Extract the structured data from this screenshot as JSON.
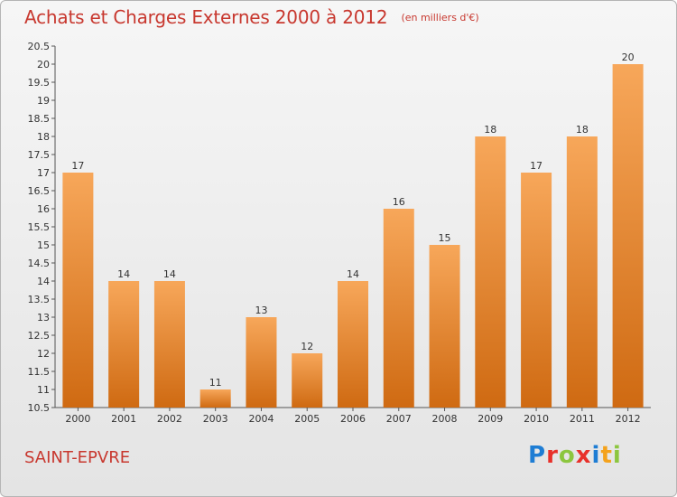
{
  "header": {
    "title": "Achats et Charges Externes 2000 à 2012",
    "units": "(en milliers d'€)"
  },
  "footer": {
    "town": "SAINT-EPVRE",
    "logo_letters": [
      "P",
      "r",
      "o",
      "x",
      "i",
      "t",
      "i"
    ],
    "logo_colors": [
      "#1e7dd4",
      "#e8302a",
      "#8cc63f",
      "#e8302a",
      "#1e7dd4",
      "#f4a21c",
      "#8cc63f"
    ]
  },
  "colors": {
    "bar_top": "#f7a75a",
    "bar_bottom": "#cf6a12",
    "axis_text": "#333333"
  },
  "chart_data": {
    "type": "bar",
    "categories": [
      "2000",
      "2001",
      "2002",
      "2003",
      "2004",
      "2005",
      "2006",
      "2007",
      "2008",
      "2009",
      "2010",
      "2011",
      "2012"
    ],
    "values": [
      17,
      14,
      14,
      11,
      13,
      12,
      14,
      16,
      15,
      18,
      17,
      18,
      20
    ],
    "data_labels": [
      "17",
      "14",
      "14",
      "11",
      "13",
      "12",
      "14",
      "16",
      "15",
      "18",
      "17",
      "18",
      "20"
    ],
    "yticks": [
      10.5,
      11,
      11.5,
      12,
      12.5,
      13,
      13.5,
      14,
      14.5,
      15,
      15.5,
      16,
      16.5,
      17,
      17.5,
      18,
      18.5,
      19,
      19.5,
      20,
      20.5
    ],
    "ytick_labels": [
      "10.5",
      "11",
      "11.5",
      "12",
      "12.5",
      "13",
      "13.5",
      "14",
      "14.5",
      "15",
      "15.5",
      "16",
      "16.5",
      "17",
      "17.5",
      "18",
      "18.5",
      "19",
      "19.5",
      "20",
      "20.5"
    ],
    "ylim": [
      10.5,
      20.5
    ],
    "title": "Achats et Charges Externes 2000 à 2012",
    "xlabel": "",
    "ylabel": "",
    "grid": false,
    "legend": "none"
  }
}
